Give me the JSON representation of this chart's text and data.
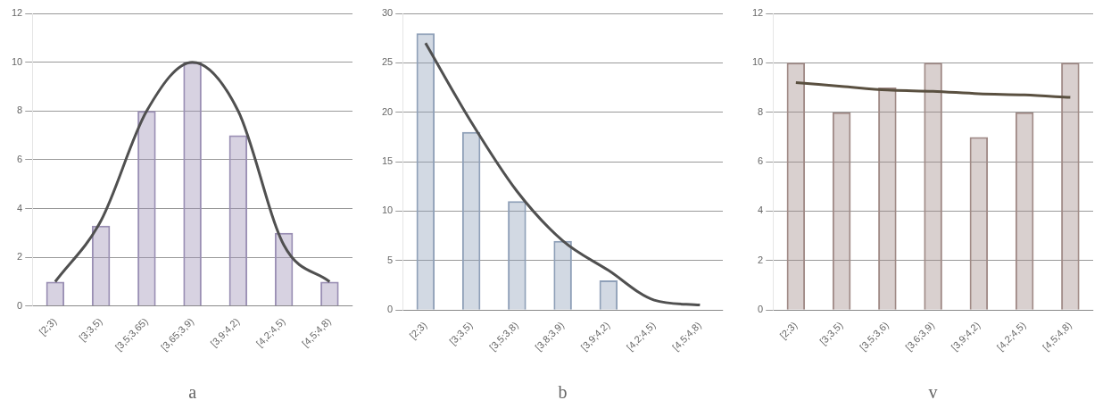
{
  "chart_data": [
    {
      "type": "bar",
      "xlabel": "a",
      "categories": [
        "[2;3)",
        "[3;3,5)",
        "[3,5;3,65)",
        "[3,65;3,9)",
        "[3,9;4,2)",
        "[4,2;4,5)",
        "[4,5;4,8)"
      ],
      "series": [
        {
          "color": "#9a8fb4",
          "values": [
            1,
            3.3,
            8,
            10,
            7,
            3,
            1
          ]
        },
        {
          "type": "line",
          "color": "#505050",
          "values": [
            1,
            3.5,
            8,
            10,
            8,
            2.5,
            1
          ]
        }
      ],
      "ylim": [
        0,
        12
      ],
      "yticks": [
        0,
        2,
        4,
        6,
        8,
        10,
        12
      ],
      "grid": "y",
      "legend": false,
      "marker": "none"
    },
    {
      "type": "bar",
      "xlabel": "b",
      "categories": [
        "[2;3)",
        "[3;3,5)",
        "[3,5;3,8)",
        "[3,8;3,9)",
        "[3,9;4,2)",
        "[4,2;4,5)",
        "[4,5;4,8)"
      ],
      "series": [
        {
          "color": "#8fa0b8",
          "values": [
            28,
            18,
            11,
            7,
            3,
            0,
            0
          ]
        },
        {
          "type": "line",
          "color": "#505050",
          "values": [
            27,
            19,
            12,
            7,
            4,
            1,
            0.5
          ]
        }
      ],
      "ylim": [
        0,
        30
      ],
      "yticks": [
        0,
        5,
        10,
        15,
        20,
        25,
        30
      ],
      "grid": "y",
      "legend": false,
      "marker": "none"
    },
    {
      "type": "bar",
      "xlabel": "v",
      "categories": [
        "[2;3)",
        "[3;3,5)",
        "[3,5;3,6)",
        "[3,6;3,9)",
        "[3,9;4,2)",
        "[4,2;4,5)",
        "[4,5;4,8)"
      ],
      "series": [
        {
          "color": "#a08a86",
          "values": [
            10,
            8,
            9,
            10,
            7,
            8,
            10
          ]
        },
        {
          "type": "line",
          "color": "#5a5040",
          "values": [
            9.2,
            9.05,
            8.9,
            8.85,
            8.75,
            8.7,
            8.6
          ]
        }
      ],
      "ylim": [
        0,
        12
      ],
      "yticks": [
        0,
        2,
        4,
        6,
        8,
        10,
        12
      ],
      "grid": "y",
      "legend": false,
      "marker": "none"
    }
  ]
}
